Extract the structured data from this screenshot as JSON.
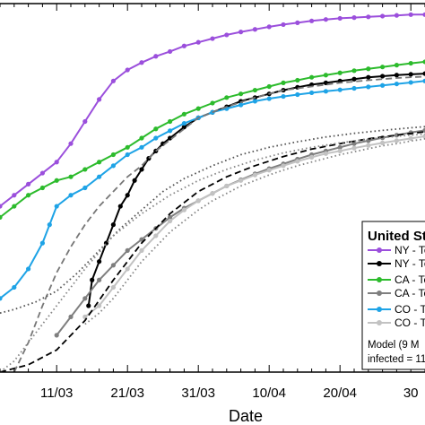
{
  "chart_data": {
    "type": "line",
    "title": "",
    "xlabel": "Date",
    "ylabel": "",
    "x_tick_labels": [
      "11/03",
      "21/03",
      "31/03",
      "10/04",
      "20/04",
      "30"
    ],
    "x_ticks_day": [
      0,
      10,
      20,
      30,
      40,
      50
    ],
    "xlim": [
      -8,
      52
    ],
    "ylim": [
      0,
      1
    ],
    "grid": false,
    "legend": {
      "placement": "lower-right",
      "title": "United St",
      "entries": [
        {
          "label": "NY - To",
          "color": "#9b4fdc",
          "style": "solid",
          "marker": "circle"
        },
        {
          "label": "NY - To",
          "color": "#000000",
          "style": "solid",
          "marker": "circle"
        },
        {
          "label": "CA - To",
          "color": "#2cbb2c",
          "style": "solid",
          "marker": "circle"
        },
        {
          "label": "CA - To",
          "color": "#7f7f7f",
          "style": "solid",
          "marker": "circle"
        },
        {
          "label": "CO - To",
          "color": "#1ea3e6",
          "style": "solid",
          "marker": "circle"
        },
        {
          "label": "CO - To",
          "color": "#c2c2c2",
          "style": "solid",
          "marker": "circle"
        }
      ],
      "note_line1": "Model (9 M",
      "note_line2": "infected = 11"
    },
    "series": [
      {
        "color": "#9b4fdc",
        "style": "solid",
        "marker": true,
        "x": [
          -8,
          -6,
          -4,
          -2,
          0,
          2,
          4,
          6,
          8,
          10,
          12,
          14,
          16,
          18,
          20,
          22,
          24,
          26,
          28,
          30,
          32,
          34,
          36,
          38,
          40,
          42,
          44,
          46,
          48,
          50,
          52
        ],
        "y": [
          0.45,
          0.48,
          0.51,
          0.54,
          0.57,
          0.62,
          0.68,
          0.74,
          0.79,
          0.82,
          0.84,
          0.857,
          0.87,
          0.885,
          0.895,
          0.905,
          0.915,
          0.923,
          0.93,
          0.937,
          0.943,
          0.948,
          0.953,
          0.957,
          0.96,
          0.962,
          0.964,
          0.966,
          0.968,
          0.97,
          0.97
        ]
      },
      {
        "color": "#000000",
        "style": "solid",
        "marker": true,
        "x": [
          4.5,
          5,
          6,
          7,
          8,
          9,
          10,
          11,
          12,
          13,
          14,
          15,
          16,
          18,
          20,
          22,
          24,
          26,
          28,
          30,
          32,
          34,
          36,
          38,
          40,
          42,
          44,
          46,
          48,
          50,
          52
        ],
        "y": [
          0.18,
          0.25,
          0.3,
          0.35,
          0.4,
          0.45,
          0.48,
          0.52,
          0.55,
          0.58,
          0.6,
          0.62,
          0.635,
          0.665,
          0.69,
          0.705,
          0.72,
          0.735,
          0.745,
          0.755,
          0.765,
          0.773,
          0.78,
          0.785,
          0.79,
          0.795,
          0.8,
          0.803,
          0.806,
          0.808,
          0.81
        ]
      },
      {
        "color": "#2cbb2c",
        "style": "solid",
        "marker": true,
        "x": [
          -8,
          -6,
          -4,
          -2,
          0,
          2,
          4,
          6,
          8,
          10,
          12,
          14,
          16,
          18,
          20,
          22,
          24,
          26,
          28,
          30,
          32,
          34,
          36,
          38,
          40,
          42,
          44,
          46,
          48,
          50,
          52
        ],
        "y": [
          0.42,
          0.45,
          0.48,
          0.5,
          0.52,
          0.53,
          0.55,
          0.57,
          0.59,
          0.61,
          0.635,
          0.66,
          0.68,
          0.7,
          0.715,
          0.73,
          0.745,
          0.755,
          0.765,
          0.775,
          0.785,
          0.792,
          0.8,
          0.806,
          0.812,
          0.818,
          0.823,
          0.828,
          0.833,
          0.838,
          0.842
        ]
      },
      {
        "color": "#7f7f7f",
        "style": "solid",
        "marker": true,
        "x": [
          0,
          2,
          4,
          6,
          8,
          10,
          12,
          14,
          16,
          18,
          20,
          22,
          24,
          26,
          28,
          30,
          32,
          34,
          36,
          38,
          40,
          42,
          44,
          46,
          48,
          50,
          52
        ],
        "y": [
          0.1,
          0.15,
          0.2,
          0.25,
          0.29,
          0.33,
          0.36,
          0.39,
          0.42,
          0.445,
          0.465,
          0.485,
          0.505,
          0.522,
          0.538,
          0.552,
          0.565,
          0.578,
          0.59,
          0.6,
          0.61,
          0.62,
          0.628,
          0.636,
          0.643,
          0.65,
          0.656
        ]
      },
      {
        "color": "#1ea3e6",
        "style": "solid",
        "marker": true,
        "x": [
          -8,
          -6,
          -4,
          -2,
          -1,
          0,
          2,
          4,
          6,
          8,
          10,
          12,
          14,
          16,
          18,
          20,
          22,
          24,
          26,
          28,
          30,
          32,
          34,
          36,
          38,
          40,
          42,
          44,
          46,
          48,
          50,
          52
        ],
        "y": [
          0.2,
          0.23,
          0.28,
          0.35,
          0.4,
          0.45,
          0.48,
          0.5,
          0.53,
          0.56,
          0.59,
          0.61,
          0.635,
          0.655,
          0.675,
          0.69,
          0.705,
          0.715,
          0.725,
          0.735,
          0.742,
          0.748,
          0.753,
          0.758,
          0.762,
          0.766,
          0.77,
          0.774,
          0.778,
          0.782,
          0.786,
          0.79
        ]
      },
      {
        "color": "#c2c2c2",
        "style": "solid",
        "marker": true,
        "x": [
          4,
          6,
          8,
          10,
          12,
          14,
          16,
          18,
          20,
          22,
          24,
          26,
          28,
          30,
          32,
          34,
          36,
          38,
          40,
          42,
          44,
          46,
          48,
          50,
          52
        ],
        "y": [
          0.15,
          0.18,
          0.23,
          0.28,
          0.33,
          0.37,
          0.41,
          0.44,
          0.465,
          0.485,
          0.505,
          0.52,
          0.535,
          0.548,
          0.56,
          0.572,
          0.583,
          0.593,
          0.6,
          0.608,
          0.615,
          0.622,
          0.628,
          0.634,
          0.64
        ]
      },
      {
        "color": "#000000",
        "style": "dashed",
        "marker": false,
        "x": [
          -8,
          -4,
          0,
          4,
          8,
          12,
          16,
          20,
          24,
          28,
          32,
          36,
          40,
          44,
          48,
          52
        ],
        "y": [
          0.0,
          0.02,
          0.06,
          0.14,
          0.25,
          0.35,
          0.43,
          0.49,
          0.53,
          0.56,
          0.585,
          0.605,
          0.62,
          0.633,
          0.643,
          0.652
        ]
      },
      {
        "color": "#777777",
        "style": "dashed",
        "marker": false,
        "x": [
          -6,
          -4,
          -2,
          0,
          2,
          4,
          6,
          8,
          10,
          12,
          14,
          16,
          18,
          20,
          24,
          28,
          32,
          36,
          40,
          44,
          48,
          52
        ],
        "y": [
          0.0,
          0.08,
          0.18,
          0.27,
          0.34,
          0.4,
          0.45,
          0.49,
          0.53,
          0.56,
          0.6,
          0.63,
          0.66,
          0.69,
          0.72,
          0.745,
          0.765,
          0.775,
          0.785,
          0.792,
          0.798,
          0.802
        ]
      },
      {
        "color": "#555555",
        "style": "dotted",
        "marker": false,
        "x": [
          -8,
          -6,
          -3,
          0,
          3,
          6,
          9,
          12,
          15,
          18,
          22,
          26,
          30,
          34,
          38,
          42,
          46,
          50,
          52
        ],
        "y": [
          0.16,
          0.17,
          0.19,
          0.22,
          0.27,
          0.33,
          0.39,
          0.44,
          0.49,
          0.525,
          0.56,
          0.59,
          0.61,
          0.625,
          0.638,
          0.648,
          0.656,
          0.663,
          0.666
        ]
      },
      {
        "color": "#888888",
        "style": "dotted",
        "marker": false,
        "x": [
          -8,
          -6,
          -4,
          0,
          4,
          8,
          12,
          16,
          20,
          24,
          28,
          32,
          36,
          40,
          44,
          48,
          52
        ],
        "y": [
          0.0,
          0.03,
          0.08,
          0.18,
          0.28,
          0.37,
          0.43,
          0.48,
          0.52,
          0.55,
          0.575,
          0.595,
          0.61,
          0.622,
          0.632,
          0.64,
          0.646
        ]
      },
      {
        "color": "#888888",
        "style": "dotted",
        "marker": false,
        "x": [
          4,
          6,
          8,
          10,
          12,
          14,
          16,
          18,
          20,
          22,
          24,
          26,
          28,
          30,
          32,
          34,
          36,
          38,
          40,
          42,
          44,
          46,
          48,
          50,
          52
        ],
        "y": [
          0.13,
          0.16,
          0.2,
          0.25,
          0.3,
          0.34,
          0.38,
          0.41,
          0.44,
          0.465,
          0.485,
          0.505,
          0.52,
          0.535,
          0.548,
          0.56,
          0.57,
          0.58,
          0.59,
          0.598,
          0.606,
          0.614,
          0.62,
          0.627,
          0.633
        ]
      }
    ]
  }
}
